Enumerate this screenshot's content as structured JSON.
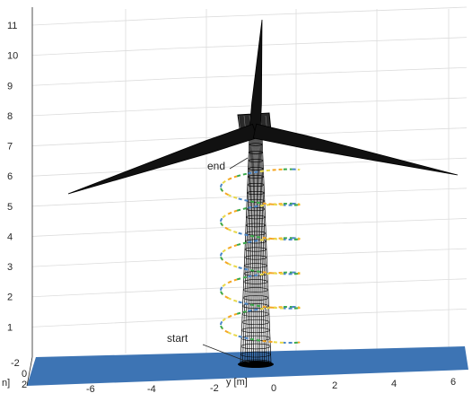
{
  "chart_data": {
    "type": "3d-surface-mesh",
    "title": "",
    "z_ticks": [
      "1",
      "2",
      "3",
      "4",
      "5",
      "6",
      "7",
      "8",
      "9",
      "10",
      "11"
    ],
    "y_ticks": [
      "-6",
      "-4",
      "-2",
      "0",
      "2",
      "4",
      "6"
    ],
    "y_label": "y [m]",
    "x_ticks": [
      "-2",
      "0",
      "2"
    ],
    "x_label_fragment": "n]",
    "annotations": {
      "start": "start",
      "end": "end"
    },
    "ground_plane_color": "#3d74b4",
    "tower_color": "#000000",
    "trajectory": {
      "description_units": "m",
      "turns": 5,
      "z_start": 0.5,
      "z_end": 6.2,
      "colors": [
        "#f5a623",
        "#3aa94a",
        "#4a86c8",
        "#e8d84a"
      ],
      "line_style": "dashed"
    },
    "grid": true
  }
}
